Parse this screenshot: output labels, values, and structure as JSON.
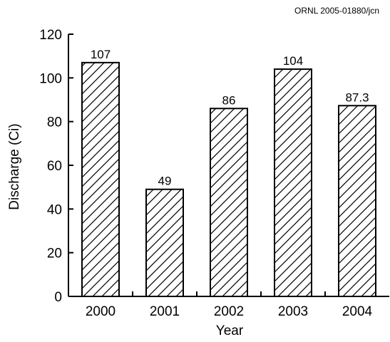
{
  "document_id": "ORNL 2005-01880/jcn",
  "chart_data": {
    "type": "bar",
    "categories": [
      "2000",
      "2001",
      "2002",
      "2003",
      "2004"
    ],
    "values": [
      107,
      49,
      86,
      104,
      87.3
    ],
    "data_labels": [
      "107",
      "49",
      "86",
      "104",
      "87.3"
    ],
    "xlabel": "Year",
    "ylabel": "Discharge (Ci)",
    "ylim": [
      0,
      120
    ],
    "yticks": [
      0,
      20,
      40,
      60,
      80,
      100,
      120
    ],
    "ytick_labels": [
      "0",
      "20",
      "40",
      "60",
      "80",
      "100",
      "120"
    ],
    "grid": false,
    "legend": "none",
    "bar_fill": "diagonal-hatch",
    "colors": {
      "bar_stroke": "#000000",
      "axis": "#000000",
      "text": "#000000",
      "background": "#ffffff"
    }
  }
}
